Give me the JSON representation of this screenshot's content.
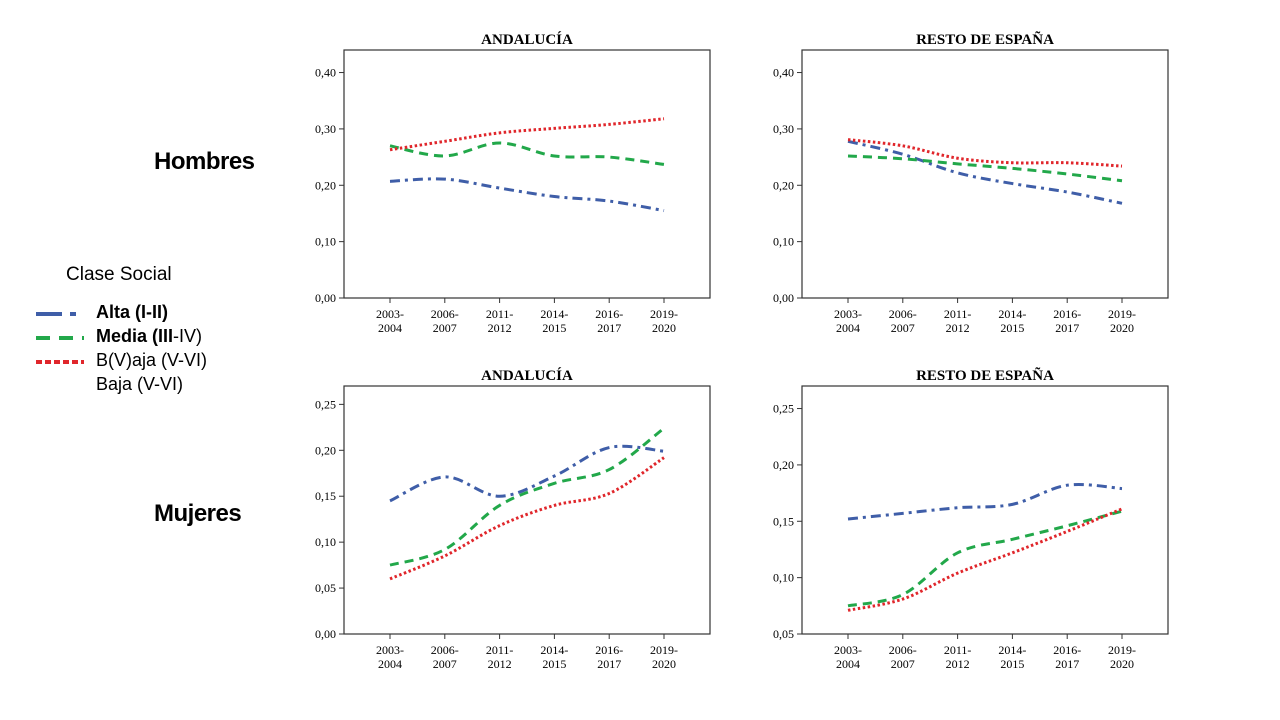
{
  "row_labels": {
    "top": "Hombres",
    "bottom": "Mujeres"
  },
  "legend": {
    "title": "Clase Social",
    "items": [
      {
        "label_bold": "Alta (I-II)",
        "label_rest": "",
        "color": "#3f5ea8",
        "dash": "dashdot"
      },
      {
        "label_bold": "Media (III",
        "label_rest": "-IV)",
        "color": "#22a84a",
        "dash": "dash"
      },
      {
        "label_bold": "",
        "label_rest": "B(V)aja (V-VI)",
        "color": "#e0262b",
        "dash": "dot"
      }
    ],
    "extra_line": "Baja (V-VI)"
  },
  "chart_data": [
    {
      "type": "line",
      "title": "ANDALUCÍA",
      "categories": [
        "2003-\n2004",
        "2006-\n2007",
        "2011-\n2012",
        "2014-\n2015",
        "2016-\n2017",
        "2019-\n2020"
      ],
      "yticks": [
        "0,00",
        "0,10",
        "0,20",
        "0,30",
        "0,40"
      ],
      "ylim": [
        0,
        0.44
      ],
      "series": [
        {
          "name": "Alta (I-II)",
          "color": "#3f5ea8",
          "dash": "dashdot",
          "values": [
            0.207,
            0.211,
            0.195,
            0.18,
            0.172,
            0.155
          ]
        },
        {
          "name": "Media (III-IV)",
          "color": "#22a84a",
          "dash": "dash",
          "values": [
            0.27,
            0.252,
            0.275,
            0.252,
            0.25,
            0.237
          ]
        },
        {
          "name": "Baja (V-VI)",
          "color": "#e0262b",
          "dash": "dot",
          "values": [
            0.263,
            0.278,
            0.293,
            0.301,
            0.308,
            0.318
          ]
        }
      ]
    },
    {
      "type": "line",
      "title": "RESTO DE ESPAÑA",
      "categories": [
        "2003-\n2004",
        "2006-\n2007",
        "2011-\n2012",
        "2014-\n2015",
        "2016-\n2017",
        "2019-\n2020"
      ],
      "yticks": [
        "0,00",
        "0,10",
        "0,20",
        "0,30",
        "0,40"
      ],
      "ylim": [
        0,
        0.44
      ],
      "series": [
        {
          "name": "Alta (I-II)",
          "color": "#3f5ea8",
          "dash": "dashdot",
          "values": [
            0.278,
            0.255,
            0.222,
            0.203,
            0.188,
            0.168
          ]
        },
        {
          "name": "Media (III-IV)",
          "color": "#22a84a",
          "dash": "dash",
          "values": [
            0.252,
            0.247,
            0.238,
            0.23,
            0.22,
            0.208
          ]
        },
        {
          "name": "Baja (V-VI)",
          "color": "#e0262b",
          "dash": "dot",
          "values": [
            0.281,
            0.27,
            0.248,
            0.24,
            0.24,
            0.234
          ]
        }
      ]
    },
    {
      "type": "line",
      "title": "ANDALUCÍA",
      "categories": [
        "2003-\n2004",
        "2006-\n2007",
        "2011-\n2012",
        "2014-\n2015",
        "2016-\n2017",
        "2019-\n2020"
      ],
      "yticks": [
        "0,00",
        "0,05",
        "0,10",
        "0,15",
        "0,20",
        "0,25"
      ],
      "ylim": [
        0,
        0.27
      ],
      "series": [
        {
          "name": "Alta (I-II)",
          "color": "#3f5ea8",
          "dash": "dashdot",
          "values": [
            0.145,
            0.171,
            0.15,
            0.172,
            0.203,
            0.199
          ]
        },
        {
          "name": "Media (III-IV)",
          "color": "#22a84a",
          "dash": "dash",
          "values": [
            0.075,
            0.092,
            0.14,
            0.164,
            0.179,
            0.224
          ]
        },
        {
          "name": "Baja (V-VI)",
          "color": "#e0262b",
          "dash": "dot",
          "values": [
            0.06,
            0.085,
            0.118,
            0.14,
            0.153,
            0.192
          ]
        }
      ]
    },
    {
      "type": "line",
      "title": "RESTO DE ESPAÑA",
      "categories": [
        "2003-\n2004",
        "2006-\n2007",
        "2011-\n2012",
        "2014-\n2015",
        "2016-\n2017",
        "2019-\n2020"
      ],
      "yticks": [
        "0,05",
        "0,10",
        "0,15",
        "0,20",
        "0,25"
      ],
      "ylim": [
        0.05,
        0.27
      ],
      "series": [
        {
          "name": "Alta (I-II)",
          "color": "#3f5ea8",
          "dash": "dashdot",
          "values": [
            0.152,
            0.157,
            0.162,
            0.165,
            0.182,
            0.179
          ]
        },
        {
          "name": "Media (III-IV)",
          "color": "#22a84a",
          "dash": "dash",
          "values": [
            0.075,
            0.085,
            0.122,
            0.134,
            0.146,
            0.159
          ]
        },
        {
          "name": "Baja (V-VI)",
          "color": "#e0262b",
          "dash": "dot",
          "values": [
            0.071,
            0.081,
            0.104,
            0.122,
            0.141,
            0.161
          ]
        }
      ]
    }
  ]
}
